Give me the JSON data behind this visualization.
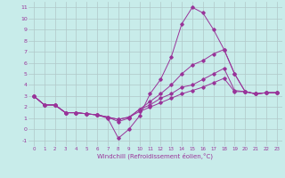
{
  "xlabel": "Windchill (Refroidissement éolien,°C)",
  "background_color": "#c8ecea",
  "grid_color": "#b0c8c8",
  "line_color": "#993399",
  "xlim": [
    -0.5,
    23.5
  ],
  "ylim": [
    -1.5,
    11.5
  ],
  "xticks": [
    0,
    1,
    2,
    3,
    4,
    5,
    6,
    7,
    8,
    9,
    10,
    11,
    12,
    13,
    14,
    15,
    16,
    17,
    18,
    19,
    20,
    21,
    22,
    23
  ],
  "yticks": [
    -1,
    0,
    1,
    2,
    3,
    4,
    5,
    6,
    7,
    8,
    9,
    10,
    11
  ],
  "series": [
    [
      3.0,
      2.2,
      2.2,
      1.5,
      1.5,
      1.4,
      1.3,
      1.0,
      -0.8,
      0.0,
      1.2,
      3.2,
      4.5,
      6.5,
      9.5,
      11.0,
      10.5,
      9.0,
      7.2,
      5.0,
      3.4,
      3.2,
      3.3,
      3.3
    ],
    [
      3.0,
      2.2,
      2.2,
      1.5,
      1.5,
      1.4,
      1.3,
      1.1,
      0.7,
      1.0,
      1.8,
      2.5,
      3.2,
      4.0,
      5.0,
      5.8,
      6.2,
      6.8,
      7.2,
      5.0,
      3.4,
      3.2,
      3.3,
      3.3
    ],
    [
      3.0,
      2.2,
      2.2,
      1.5,
      1.5,
      1.4,
      1.3,
      1.1,
      0.9,
      1.1,
      1.8,
      2.2,
      2.8,
      3.2,
      3.8,
      4.0,
      4.5,
      5.0,
      5.5,
      3.5,
      3.4,
      3.2,
      3.3,
      3.3
    ],
    [
      3.0,
      2.2,
      2.2,
      1.5,
      1.5,
      1.4,
      1.3,
      1.1,
      0.9,
      1.1,
      1.6,
      2.0,
      2.4,
      2.8,
      3.2,
      3.5,
      3.8,
      4.2,
      4.6,
      3.4,
      3.4,
      3.2,
      3.3,
      3.3
    ]
  ]
}
